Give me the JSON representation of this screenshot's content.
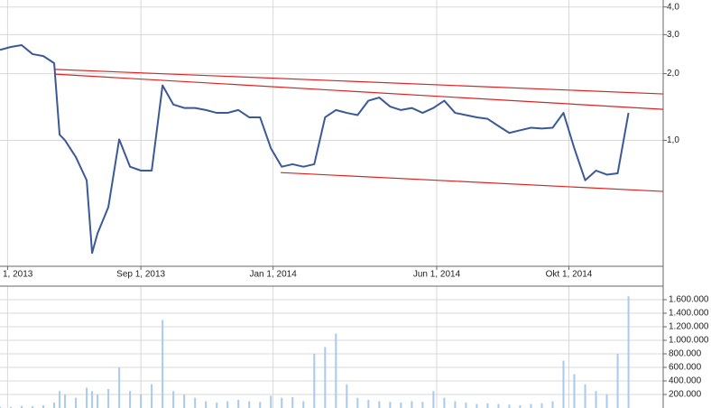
{
  "chart_data": {
    "type": "line",
    "log_scale": true,
    "grid": true,
    "x": [
      "2013-04-24",
      "2013-05-04",
      "2013-05-14",
      "2013-05-24",
      "2013-06-03",
      "2013-06-13",
      "2013-06-18",
      "2013-06-23",
      "2013-07-03",
      "2013-07-13",
      "2013-07-18",
      "2013-07-23",
      "2013-08-02",
      "2013-08-12",
      "2013-08-22",
      "2013-09-01",
      "2013-09-11",
      "2013-09-21",
      "2013-10-01",
      "2013-10-11",
      "2013-10-21",
      "2013-10-31",
      "2013-11-10",
      "2013-11-20",
      "2013-11-30",
      "2013-12-10",
      "2013-12-20",
      "2013-12-30",
      "2014-01-09",
      "2014-01-19",
      "2014-01-29",
      "2014-02-08",
      "2014-02-18",
      "2014-02-28",
      "2014-03-10",
      "2014-03-20",
      "2014-03-30",
      "2014-04-09",
      "2014-04-19",
      "2014-04-29",
      "2014-05-09",
      "2014-05-19",
      "2014-05-29",
      "2014-06-08",
      "2014-06-18",
      "2014-06-28",
      "2014-07-08",
      "2014-07-18",
      "2014-07-28",
      "2014-08-07",
      "2014-08-17",
      "2014-08-27",
      "2014-09-06",
      "2014-09-16",
      "2014-09-26",
      "2014-10-06",
      "2014-10-16",
      "2014-10-26",
      "2014-11-05",
      "2014-11-15",
      "2014-11-25"
    ],
    "xlim": [
      "2013-04-24",
      "2014-12-27"
    ],
    "xticks": [
      {
        "value": "2013-05-01",
        "label": "1, 2013"
      },
      {
        "value": "2013-09-01",
        "label": "Sep 1, 2013"
      },
      {
        "value": "2014-01-01",
        "label": "Jan 1, 2014"
      },
      {
        "value": "2014-06-01",
        "label": "Jun 1, 2014"
      },
      {
        "value": "2014-10-01",
        "label": "Okt 1, 2014"
      }
    ],
    "ylim": [
      0.27,
      4.3
    ],
    "yticks": [
      {
        "value": 1,
        "label": "1,0"
      },
      {
        "value": 2,
        "label": "2,0"
      },
      {
        "value": 3,
        "label": "3,0"
      },
      {
        "value": 4,
        "label": "4,0"
      }
    ],
    "series": [
      {
        "color": "#3b5998",
        "values": [
          2.56,
          2.64,
          2.69,
          2.45,
          2.4,
          2.23,
          1.06,
          1.0,
          0.84,
          0.66,
          0.31,
          0.38,
          0.5,
          1.01,
          0.76,
          0.73,
          0.73,
          1.77,
          1.45,
          1.4,
          1.4,
          1.37,
          1.33,
          1.33,
          1.37,
          1.27,
          1.27,
          0.92,
          0.76,
          0.78,
          0.76,
          0.78,
          1.27,
          1.37,
          1.33,
          1.3,
          1.51,
          1.56,
          1.42,
          1.37,
          1.4,
          1.33,
          1.4,
          1.51,
          1.33,
          1.3,
          1.27,
          1.25,
          1.16,
          1.08,
          1.11,
          1.14,
          1.13,
          1.14,
          1.33,
          0.92,
          0.66,
          0.73,
          0.7,
          0.71,
          1.33
        ]
      }
    ],
    "trendlines": [
      {
        "color": "#dd2222",
        "x": [
          "2013-06-14",
          "2014-12-27"
        ],
        "values": [
          2.09,
          1.62
        ]
      },
      {
        "color": "#dd2222",
        "x": [
          "2013-06-14",
          "2014-12-27"
        ],
        "values": [
          1.99,
          1.38
        ]
      },
      {
        "color": "#dd2222",
        "x": [
          "2014-01-08",
          "2014-12-27"
        ],
        "values": [
          0.715,
          0.588
        ]
      }
    ],
    "volume": {
      "type": "bar",
      "color": "#a9c9ee",
      "values": [
        20000,
        15000,
        30000,
        25000,
        40000,
        80000,
        250000,
        200000,
        150000,
        300000,
        250000,
        200000,
        280000,
        600000,
        250000,
        200000,
        350000,
        1300000,
        250000,
        200000,
        150000,
        100000,
        80000,
        100000,
        120000,
        100000,
        90000,
        180000,
        150000,
        160000,
        100000,
        800000,
        900000,
        1100000,
        350000,
        150000,
        120000,
        100000,
        90000,
        80000,
        100000,
        90000,
        250000,
        150000,
        100000,
        80000,
        60000,
        70000,
        60000,
        50000,
        40000,
        60000,
        70000,
        100000,
        700000,
        500000,
        350000,
        250000,
        200000,
        800000,
        1650000
      ],
      "ylim": [
        0,
        1800000
      ],
      "yticks": [
        {
          "value": 200000,
          "label": "200.000"
        },
        {
          "value": 400000,
          "label": "400.000"
        },
        {
          "value": 600000,
          "label": "600.000"
        },
        {
          "value": 800000,
          "label": "800.000"
        },
        {
          "value": 1000000,
          "label": "1.000.000"
        },
        {
          "value": 1200000,
          "label": "1.200.000"
        },
        {
          "value": 1400000,
          "label": "1.400.000"
        },
        {
          "value": 1600000,
          "label": "1.600.000"
        }
      ]
    }
  }
}
